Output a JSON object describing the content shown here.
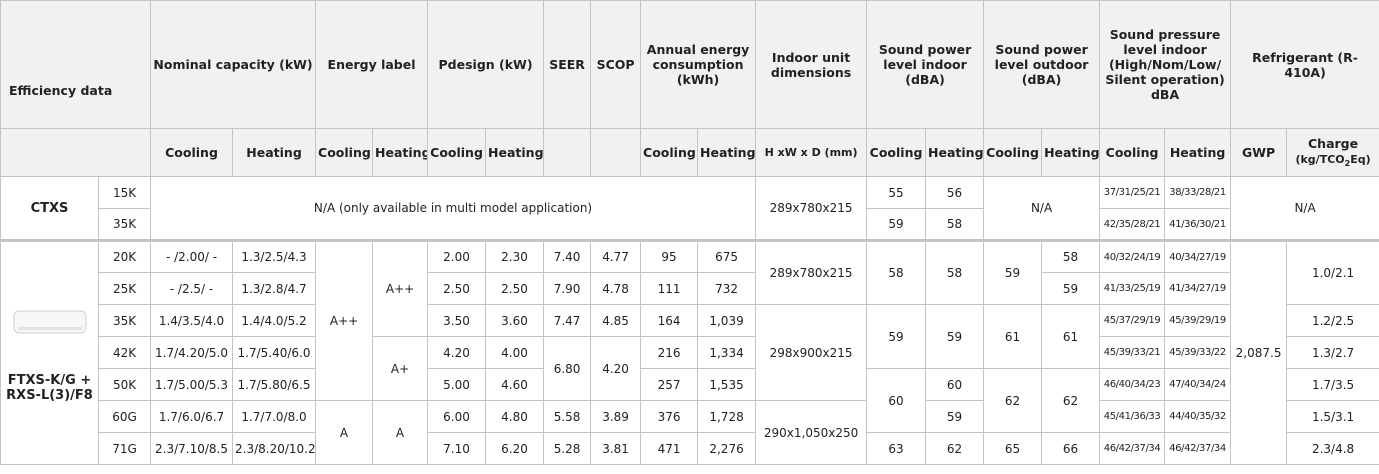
{
  "header": {
    "title": "Efficiency data",
    "groups": [
      "Nominal capacity (kW)",
      "Energy label",
      "Pdesign (kW)",
      "SEER",
      "SCOP",
      "Annual energy consumption (kWh)",
      "Indoor unit dimensions",
      "Sound power level indoor (dBA)",
      "Sound power level outdoor (dBA)",
      "Sound pressure level indoor (High/Nom/Low/ Silent operation) dBA",
      "Refrigerant (R-410A)"
    ],
    "sub": [
      "Cooling",
      "Heating",
      "Cooling",
      "Heating",
      "Cooling",
      "Heating",
      "Cooling",
      "Heating",
      "H xW x D (mm)",
      "Cooling",
      "Heating",
      "Cooling",
      "Heating",
      "Cooling",
      "Heating",
      "GWP",
      "Charge"
    ],
    "charge_unit": [
      "(kg/TCO",
      "2",
      "Eq)"
    ]
  },
  "table": {
    "rows": [
      [
        "CTXS",
        "15K",
        "N/A (only available in multi model application)",
        "289x780x215",
        "55",
        "56",
        "N/A",
        "37/31/25/21",
        "38/33/28/21",
        "N/A"
      ],
      [
        "35K",
        "59",
        "58",
        "42/35/28/21",
        "41/36/30/21"
      ],
      [
        "FTXS-K/G + RXS-L(3)/F8",
        "20K",
        "- /2.00/ -",
        "1.3/2.5/4.3",
        "A++",
        "A++",
        "2.00",
        "2.30",
        "7.40",
        "4.77",
        "95",
        "675",
        "289x780x215",
        "58",
        "58",
        "59",
        "58",
        "40/32/24/19",
        "40/34/27/19",
        "2,087.5",
        "1.0/2.1"
      ],
      [
        "25K",
        "- /2.5/ -",
        "1.3/2.8/4.7",
        "2.50",
        "2.50",
        "7.90",
        "4.78",
        "111",
        "732",
        "59",
        "41/33/25/19",
        "41/34/27/19"
      ],
      [
        "35K",
        "1.4/3.5/4.0",
        "1.4/4.0/5.2",
        "3.50",
        "3.60",
        "7.47",
        "4.85",
        "164",
        "1,039",
        "298x900x215",
        "59",
        "59",
        "61",
        "61",
        "45/37/29/19",
        "45/39/29/19",
        "1.2/2.5"
      ],
      [
        "42K",
        "1.7/4.20/5.0",
        "1.7/5.40/6.0",
        "A+",
        "4.20",
        "4.00",
        "6.80",
        "4.20",
        "216",
        "1,334",
        "45/39/33/21",
        "45/39/33/22",
        "1.3/2.7"
      ],
      [
        "50K",
        "1.7/5.00/5.3",
        "1.7/5.80/6.5",
        "5.00",
        "4.60",
        "257",
        "1,535",
        "60",
        "60",
        "62",
        "62",
        "46/40/34/23",
        "47/40/34/24",
        "1.7/3.5"
      ],
      [
        "60G",
        "1.7/6.0/6.7",
        "1.7/7.0/8.0",
        "A",
        "A",
        "6.00",
        "4.80",
        "5.58",
        "3.89",
        "376",
        "1,728",
        "290x1,050x250",
        "59",
        "45/41/36/33",
        "44/40/35/32",
        "1.5/3.1"
      ],
      [
        "71G",
        "2.3/7.10/8.5",
        "2.3/8.20/10.2",
        "7.10",
        "6.20",
        "5.28",
        "3.81",
        "471",
        "2,276",
        "63",
        "62",
        "65",
        "66",
        "46/42/37/34",
        "46/42/37/34",
        "2.3/4.8"
      ]
    ]
  }
}
